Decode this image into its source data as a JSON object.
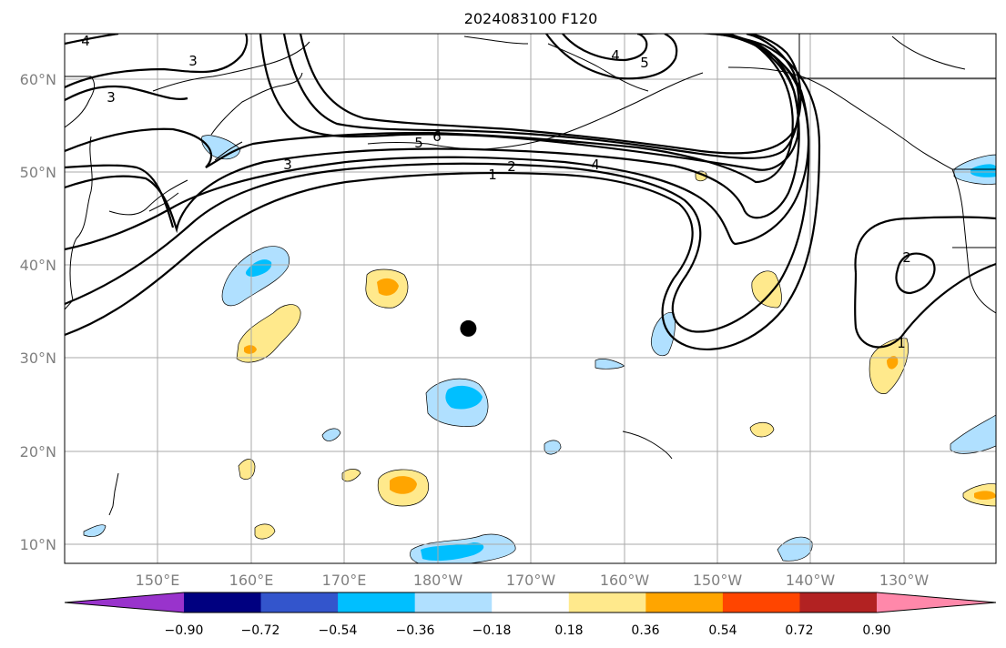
{
  "title": "2024083100 F120",
  "map": {
    "lon_ticks": [
      "150°E",
      "160°E",
      "170°E",
      "180°W",
      "170°W",
      "160°W",
      "150°W",
      "140°W",
      "130°W"
    ],
    "lat_ticks": [
      "60°N",
      "50°N",
      "40°N",
      "30°N",
      "20°N",
      "10°N"
    ],
    "contour_labels": [
      "4",
      "3",
      "3",
      "3",
      "4",
      "5",
      "5",
      "6",
      "1",
      "2",
      "4",
      "2",
      "1"
    ],
    "marker": {
      "lon": -176.7,
      "lat": 33.2,
      "color": "#000000"
    }
  },
  "colorbar": {
    "ticks": [
      "−0.90",
      "−0.72",
      "−0.54",
      "−0.36",
      "−0.18",
      "0.18",
      "0.36",
      "0.54",
      "0.72",
      "0.90"
    ],
    "colors": [
      "#9933cc",
      "#000080",
      "#3355cc",
      "#00bfff",
      "#b0e0ff",
      "#ffffff",
      "#ffe98c",
      "#ffa500",
      "#ff4500",
      "#b22222",
      "#ff88aa"
    ]
  }
}
